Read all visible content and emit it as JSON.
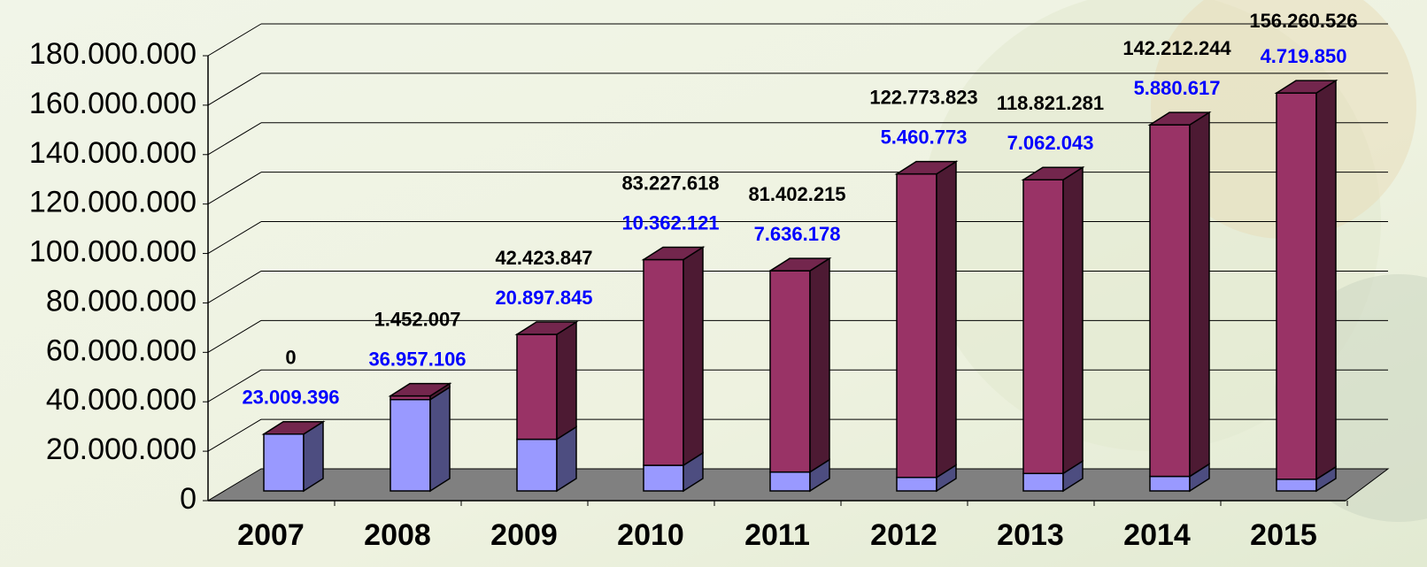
{
  "chart_data": {
    "type": "bar3d_stacked",
    "categories": [
      "2007",
      "2008",
      "2009",
      "2010",
      "2011",
      "2012",
      "2013",
      "2014",
      "2015"
    ],
    "series": [
      {
        "color": "#9999ff",
        "values": [
          23009396,
          36957106,
          20897845,
          10362121,
          7636178,
          5460773,
          7062043,
          5880617,
          4719850
        ],
        "value_labels": [
          "23.009.396",
          "36.957.106",
          "20.897.845",
          "10.362.121",
          "7.636.178",
          "5.460.773",
          "7.062.043",
          "5.880.617",
          "4.719.850"
        ],
        "label_color": "#0000ff"
      },
      {
        "color": "#993366",
        "values": [
          0,
          1452007,
          42423847,
          83227618,
          81402215,
          122773823,
          118821281,
          142212244,
          156260526
        ],
        "value_labels": [
          "0",
          "1.452.007",
          "42.423.847",
          "83.227.618",
          "81.402.215",
          "122.773.823",
          "118.821.281",
          "142.212.244",
          "156.260.526"
        ],
        "label_color": "#000000"
      }
    ],
    "ylim": [
      0,
      180000000
    ],
    "yticks": [
      0,
      {
        "value": 20000000,
        "label": "20.000.000"
      },
      {
        "value": 40000000,
        "label": "40.000.000"
      },
      {
        "value": 60000000,
        "label": "60.000.000"
      },
      {
        "value": 80000000,
        "label": "80.000.000"
      },
      {
        "value": 100000000,
        "label": "100.000.000"
      },
      {
        "value": 120000000,
        "label": "120.000.000"
      },
      {
        "value": 140000000,
        "label": "140.000.000"
      },
      {
        "value": 160000000,
        "label": "160.000.000"
      },
      {
        "value": 180000000,
        "label": "180.000.000"
      }
    ],
    "grid": true
  }
}
